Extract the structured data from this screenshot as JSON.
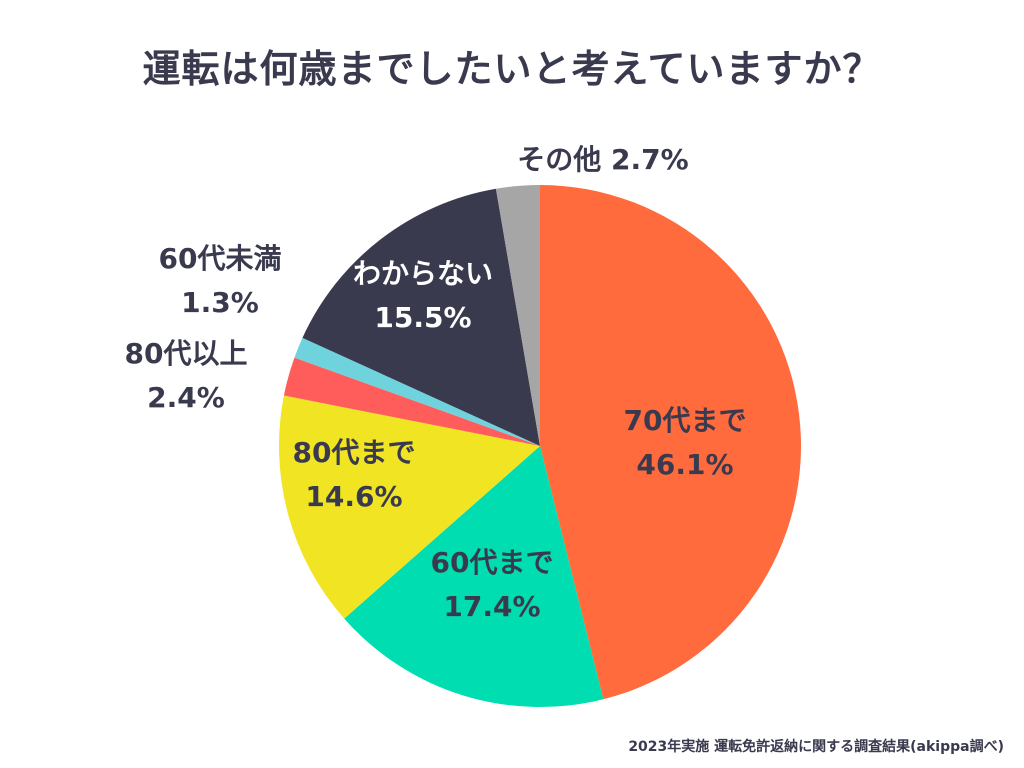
{
  "title": "運転は何歳までしたいと考えていますか？",
  "source": "2023年実施 運転免許返納に関する調査結果(akippa調べ)",
  "colors": {
    "text": "#3a3a4f",
    "inside_label_light": "#ffffff"
  },
  "chart_data": {
    "type": "pie",
    "title": "運転は何歳までしたいと考えていますか？",
    "start": "12 o'clock, clockwise",
    "slices": [
      {
        "label": "70代まで",
        "value": 46.1,
        "display": "46.1%",
        "color": "#ff6b3d",
        "label_position": "inside"
      },
      {
        "label": "60代まで",
        "value": 17.4,
        "display": "17.4%",
        "color": "#00ddb0",
        "label_position": "inside"
      },
      {
        "label": "80代まで",
        "value": 14.6,
        "display": "14.6%",
        "color": "#f1e523",
        "label_position": "inside"
      },
      {
        "label": "80代以上",
        "value": 2.4,
        "display": "2.4%",
        "color": "#ff5c5c",
        "label_position": "outside"
      },
      {
        "label": "60代未満",
        "value": 1.3,
        "display": "1.3%",
        "color": "#6ed3dd",
        "label_position": "outside"
      },
      {
        "label": "わからない",
        "value": 15.5,
        "display": "15.5%",
        "color": "#3a3a4f",
        "label_position": "inside"
      },
      {
        "label": "その他",
        "value": 2.7,
        "display": "2.7%",
        "color": "#a6a6a6",
        "label_position": "outside-single-line"
      }
    ]
  }
}
